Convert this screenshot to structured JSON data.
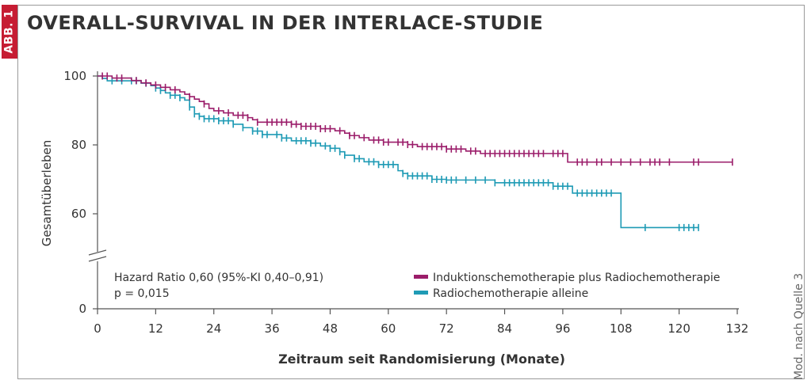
{
  "badge": "ABB. 1",
  "title": "OVERALL-SURVIVAL IN DER INTERLACE-STUDIE",
  "source_note": "Mod. nach Quelle 3",
  "chart_data": {
    "type": "line",
    "title": "OVERALL-SURVIVAL IN DER INTERLACE-STUDIE",
    "xlabel": "Zeitraum seit Randomisierung (Monate)",
    "ylabel": "Gesamtüberleben",
    "xlim": [
      0,
      132
    ],
    "ylim_upper_panel": [
      50,
      100
    ],
    "y_axis_break": true,
    "xticks": [
      0,
      12,
      24,
      36,
      48,
      60,
      72,
      84,
      96,
      108,
      120,
      132
    ],
    "xtick_labels": [
      "0",
      "12",
      "24",
      "36",
      "48",
      "60",
      "72",
      "84",
      "96",
      "108",
      "120",
      "132"
    ],
    "yticks": [
      0,
      60,
      80,
      100
    ],
    "ytick_labels": [
      "0",
      "60",
      "80",
      "100"
    ],
    "annotation": {
      "line1": "Hazard Ratio 0,60 (95%-KI 0,40–0,91)",
      "line2": "p = 0,015"
    },
    "legend_position": "bottom-right",
    "series": [
      {
        "name": "Induktionschemotherapie plus Radiochemotherapie",
        "color": "#9b1d6a",
        "steps": [
          [
            0,
            100
          ],
          [
            3,
            99.4
          ],
          [
            7,
            98.7
          ],
          [
            9,
            98
          ],
          [
            11,
            97.4
          ],
          [
            13,
            96.7
          ],
          [
            15,
            96
          ],
          [
            17,
            95.4
          ],
          [
            18,
            94.7
          ],
          [
            19,
            94
          ],
          [
            20,
            93.3
          ],
          [
            21,
            92.6
          ],
          [
            22,
            91.9
          ],
          [
            23,
            90.6
          ],
          [
            24,
            89.9
          ],
          [
            26,
            89.3
          ],
          [
            28,
            88.6
          ],
          [
            31,
            87.9
          ],
          [
            32,
            87.3
          ],
          [
            33,
            86.6
          ],
          [
            40,
            86
          ],
          [
            42,
            85.4
          ],
          [
            46,
            84.7
          ],
          [
            49,
            84.1
          ],
          [
            51,
            83.4
          ],
          [
            52,
            82.7
          ],
          [
            54,
            82.1
          ],
          [
            56,
            81.4
          ],
          [
            59,
            80.8
          ],
          [
            64,
            80.1
          ],
          [
            66,
            79.5
          ],
          [
            72,
            78.8
          ],
          [
            76,
            78.2
          ],
          [
            79,
            77.5
          ],
          [
            97,
            75
          ]
        ],
        "censors": [
          1,
          2,
          4,
          5,
          8,
          10,
          12,
          14,
          16,
          19,
          22,
          25,
          27,
          29,
          30,
          31,
          33,
          35,
          36,
          37,
          38,
          39,
          40,
          41,
          42,
          43,
          44,
          45,
          46,
          47,
          48,
          50,
          52,
          53,
          55,
          57,
          58,
          59,
          60,
          62,
          63,
          64,
          65,
          67,
          68,
          69,
          70,
          71,
          72,
          73,
          74,
          75,
          77,
          78,
          80,
          81,
          82,
          83,
          84,
          85,
          86,
          87,
          88,
          89,
          90,
          91,
          92,
          94,
          95,
          96,
          99,
          100,
          101,
          103,
          104,
          106,
          108,
          110,
          112,
          114,
          115,
          116,
          118,
          123,
          124,
          131
        ],
        "end_x": 131
      },
      {
        "name": "Radiochemotherapie alleine",
        "color": "#1f9bb5",
        "steps": [
          [
            0,
            100
          ],
          [
            1,
            99.3
          ],
          [
            2,
            98.6
          ],
          [
            9,
            97.9
          ],
          [
            11,
            97.2
          ],
          [
            12,
            96.5
          ],
          [
            13,
            95.8
          ],
          [
            14,
            95.1
          ],
          [
            15,
            94.4
          ],
          [
            17,
            93.7
          ],
          [
            18,
            93
          ],
          [
            19,
            91
          ],
          [
            20,
            89
          ],
          [
            21,
            88.3
          ],
          [
            22,
            87.6
          ],
          [
            25,
            87
          ],
          [
            28,
            86
          ],
          [
            30,
            85
          ],
          [
            32,
            84
          ],
          [
            34,
            83
          ],
          [
            38,
            82
          ],
          [
            40,
            81.2
          ],
          [
            44,
            80.5
          ],
          [
            46,
            79.7
          ],
          [
            48,
            79
          ],
          [
            50,
            78
          ],
          [
            51,
            77
          ],
          [
            53,
            76
          ],
          [
            55,
            75.1
          ],
          [
            58,
            74.3
          ],
          [
            62,
            72.5
          ],
          [
            63,
            71.7
          ],
          [
            64,
            71
          ],
          [
            69,
            70
          ],
          [
            72,
            69.8
          ],
          [
            82,
            69
          ],
          [
            94,
            68
          ],
          [
            98,
            66
          ],
          [
            108,
            56
          ]
        ],
        "censors": [
          3,
          5,
          7,
          8,
          10,
          12,
          13,
          15,
          16,
          17,
          19,
          20,
          21,
          22,
          23,
          24,
          25,
          26,
          27,
          28,
          30,
          32,
          33,
          34,
          35,
          37,
          38,
          39,
          41,
          42,
          43,
          44,
          45,
          47,
          48,
          49,
          50,
          51,
          53,
          54,
          56,
          57,
          58,
          59,
          60,
          61,
          63,
          64,
          65,
          66,
          67,
          68,
          69,
          70,
          71,
          72,
          73,
          74,
          76,
          78,
          80,
          82,
          84,
          85,
          86,
          87,
          88,
          89,
          90,
          91,
          92,
          93,
          94,
          95,
          96,
          97,
          99,
          100,
          101,
          102,
          103,
          104,
          105,
          106,
          113,
          120,
          121,
          122,
          123,
          124
        ],
        "end_x": 124
      }
    ]
  }
}
